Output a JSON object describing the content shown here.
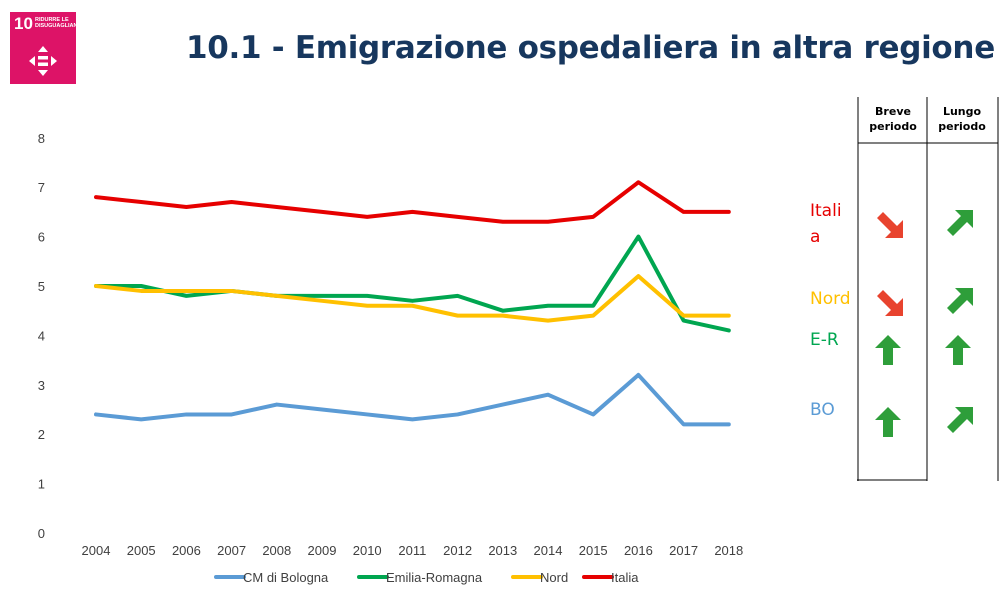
{
  "badge": {
    "number": "10",
    "text": "RIDURRE LE DISUGUAGLIANZE"
  },
  "title": "10.1 - Emigrazione ospedaliera in altra regione",
  "chart_data": {
    "type": "line",
    "title": "10.1 - Emigrazione ospedaliera in altra regione",
    "x": [
      "2004",
      "2005",
      "2006",
      "2007",
      "2008",
      "2009",
      "2010",
      "2011",
      "2012",
      "2013",
      "2014",
      "2015",
      "2016",
      "2017",
      "2018"
    ],
    "ylim": [
      0,
      8
    ],
    "yticks": [
      "0",
      "1",
      "2",
      "3",
      "4",
      "5",
      "6",
      "7",
      "8"
    ],
    "grid": false,
    "legend_position": "bottom",
    "series": [
      {
        "name": "CM di Bologna",
        "color": "#5b9bd5",
        "values": [
          2.4,
          2.3,
          2.4,
          2.4,
          2.6,
          2.5,
          2.4,
          2.3,
          2.4,
          2.6,
          2.8,
          2.4,
          3.2,
          2.2,
          2.2
        ]
      },
      {
        "name": "Emilia-Romagna",
        "color": "#00a650",
        "values": [
          5.0,
          5.0,
          4.8,
          4.9,
          4.8,
          4.8,
          4.8,
          4.7,
          4.8,
          4.5,
          4.6,
          4.6,
          6.0,
          4.3,
          4.1
        ]
      },
      {
        "name": "Nord",
        "color": "#ffc000",
        "values": [
          5.0,
          4.9,
          4.9,
          4.9,
          4.8,
          4.7,
          4.6,
          4.6,
          4.4,
          4.4,
          4.3,
          4.4,
          5.2,
          4.4,
          4.4
        ]
      },
      {
        "name": "Italia",
        "color": "#e60000",
        "values": [
          6.8,
          6.7,
          6.6,
          6.7,
          6.6,
          6.5,
          6.4,
          6.5,
          6.4,
          6.3,
          6.3,
          6.4,
          7.1,
          6.5,
          6.5
        ]
      }
    ]
  },
  "labels": {
    "italia": "Italia",
    "nord": "Nord",
    "er": "E-R",
    "bo": "BO"
  },
  "trend_table": {
    "short_header": "Breve periodo",
    "long_header": "Lungo periodo",
    "arrow_colors": {
      "up": "#2e9e3a",
      "down": "#e8432e"
    },
    "rows": [
      {
        "region": "Italia",
        "short": "down-right",
        "long": "up-right"
      },
      {
        "region": "Nord",
        "short": "down-right",
        "long": "up-right"
      },
      {
        "region": "E-R",
        "short": "up",
        "long": "up"
      },
      {
        "region": "BO",
        "short": "up",
        "long": "up-right"
      }
    ]
  }
}
